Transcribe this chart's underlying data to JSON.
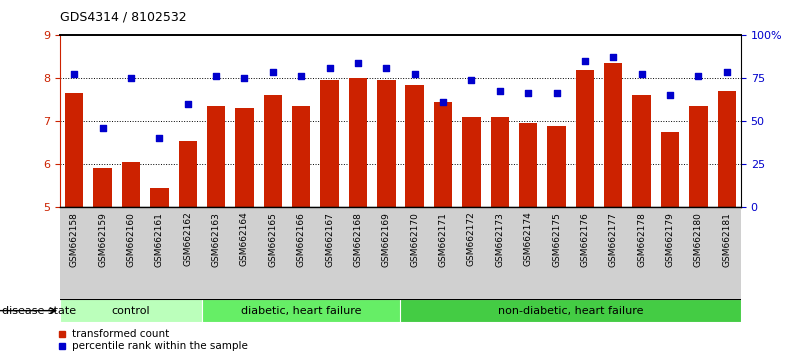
{
  "title": "GDS4314 / 8102532",
  "samples": [
    "GSM662158",
    "GSM662159",
    "GSM662160",
    "GSM662161",
    "GSM662162",
    "GSM662163",
    "GSM662164",
    "GSM662165",
    "GSM662166",
    "GSM662167",
    "GSM662168",
    "GSM662169",
    "GSM662170",
    "GSM662171",
    "GSM662172",
    "GSM662173",
    "GSM662174",
    "GSM662175",
    "GSM662176",
    "GSM662177",
    "GSM662178",
    "GSM662179",
    "GSM662180",
    "GSM662181"
  ],
  "bar_values": [
    7.65,
    5.9,
    6.05,
    5.45,
    6.55,
    7.35,
    7.3,
    7.6,
    7.35,
    7.95,
    8.0,
    7.95,
    7.85,
    7.45,
    7.1,
    7.1,
    6.95,
    6.9,
    8.2,
    8.35,
    7.6,
    6.75,
    7.35,
    7.7
  ],
  "dot_values": [
    8.1,
    6.85,
    8.0,
    6.6,
    7.4,
    8.05,
    8.0,
    8.15,
    8.05,
    8.25,
    8.35,
    8.25,
    8.1,
    7.45,
    7.95,
    7.7,
    7.65,
    7.65,
    8.4,
    8.5,
    8.1,
    7.6,
    8.05,
    8.15
  ],
  "bar_color": "#cc2200",
  "dot_color": "#0000cc",
  "ylim": [
    5,
    9
  ],
  "yticks": [
    5,
    6,
    7,
    8,
    9
  ],
  "hlines": [
    6,
    7,
    8
  ],
  "groups": [
    {
      "label": "control",
      "start": 0,
      "end": 5,
      "color": "#bbffbb"
    },
    {
      "label": "diabetic, heart failure",
      "start": 5,
      "end": 12,
      "color": "#66ee66"
    },
    {
      "label": "non-diabetic, heart failure",
      "start": 12,
      "end": 24,
      "color": "#44cc44"
    }
  ],
  "disease_state_label": "disease state",
  "legend_bar_label": "transformed count",
  "legend_dot_label": "percentile rank within the sample",
  "bar_color_hex": "#cc2200",
  "dot_color_hex": "#0000cc",
  "right_axis_ticks": [
    0,
    25,
    50,
    75,
    100
  ],
  "right_axis_labels": [
    "0",
    "25",
    "50",
    "75",
    "100%"
  ]
}
